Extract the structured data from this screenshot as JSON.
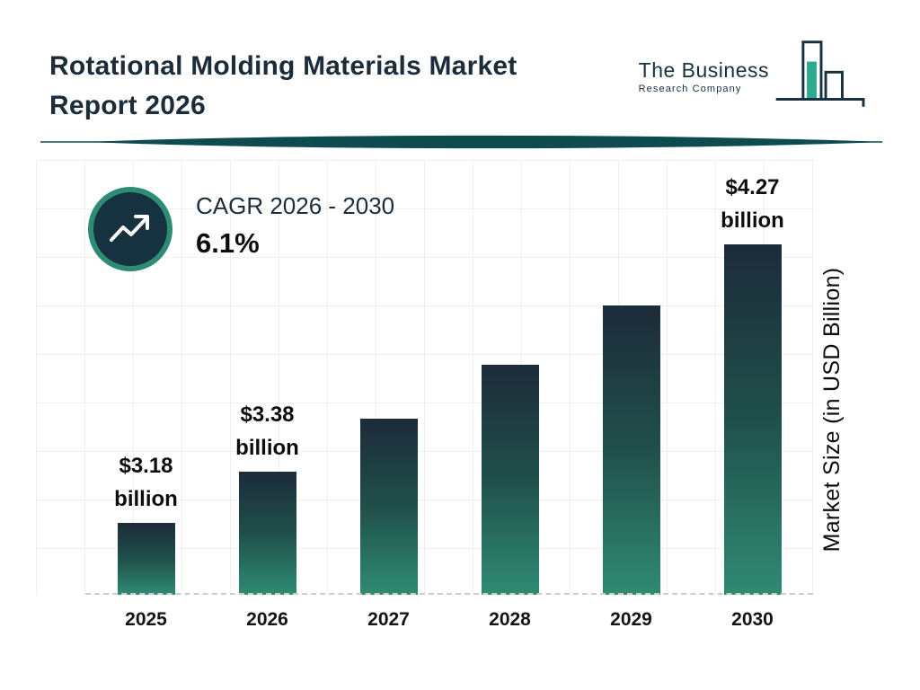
{
  "header": {
    "title_line1": "Rotational Molding Materials Market",
    "title_line2": "Report 2026",
    "logo": {
      "name_line1": "The Business",
      "name_line2": "Research Company",
      "icon": "bar-chart-logo-icon"
    }
  },
  "cagr": {
    "label": "CAGR 2026 - 2030",
    "value": "6.1%",
    "icon": "trend-up-arrow-icon"
  },
  "chart_data": {
    "type": "bar",
    "title": "Rotational Molding Materials Market Report 2026",
    "categories": [
      "2025",
      "2026",
      "2027",
      "2028",
      "2029",
      "2030"
    ],
    "values": [
      3.18,
      3.38,
      3.59,
      3.8,
      4.03,
      4.27
    ],
    "data_labels": [
      [
        "$3.18",
        "billion"
      ],
      [
        "$3.38",
        "billion"
      ],
      null,
      null,
      null,
      [
        "$4.27",
        "billion"
      ]
    ],
    "xlabel": "",
    "ylabel": "Market Size (in USD Billion)",
    "baseline_value": 2.9,
    "ylim": [
      2.9,
      4.4
    ],
    "grid": true,
    "legend": "none",
    "colors": {
      "bar_gradient_top": "#1c2b39",
      "bar_gradient_bottom": "#2f8b72",
      "accent_teal": "#2e8b74",
      "navy": "#16313f",
      "divider_teal": "#0e4b4e"
    }
  }
}
